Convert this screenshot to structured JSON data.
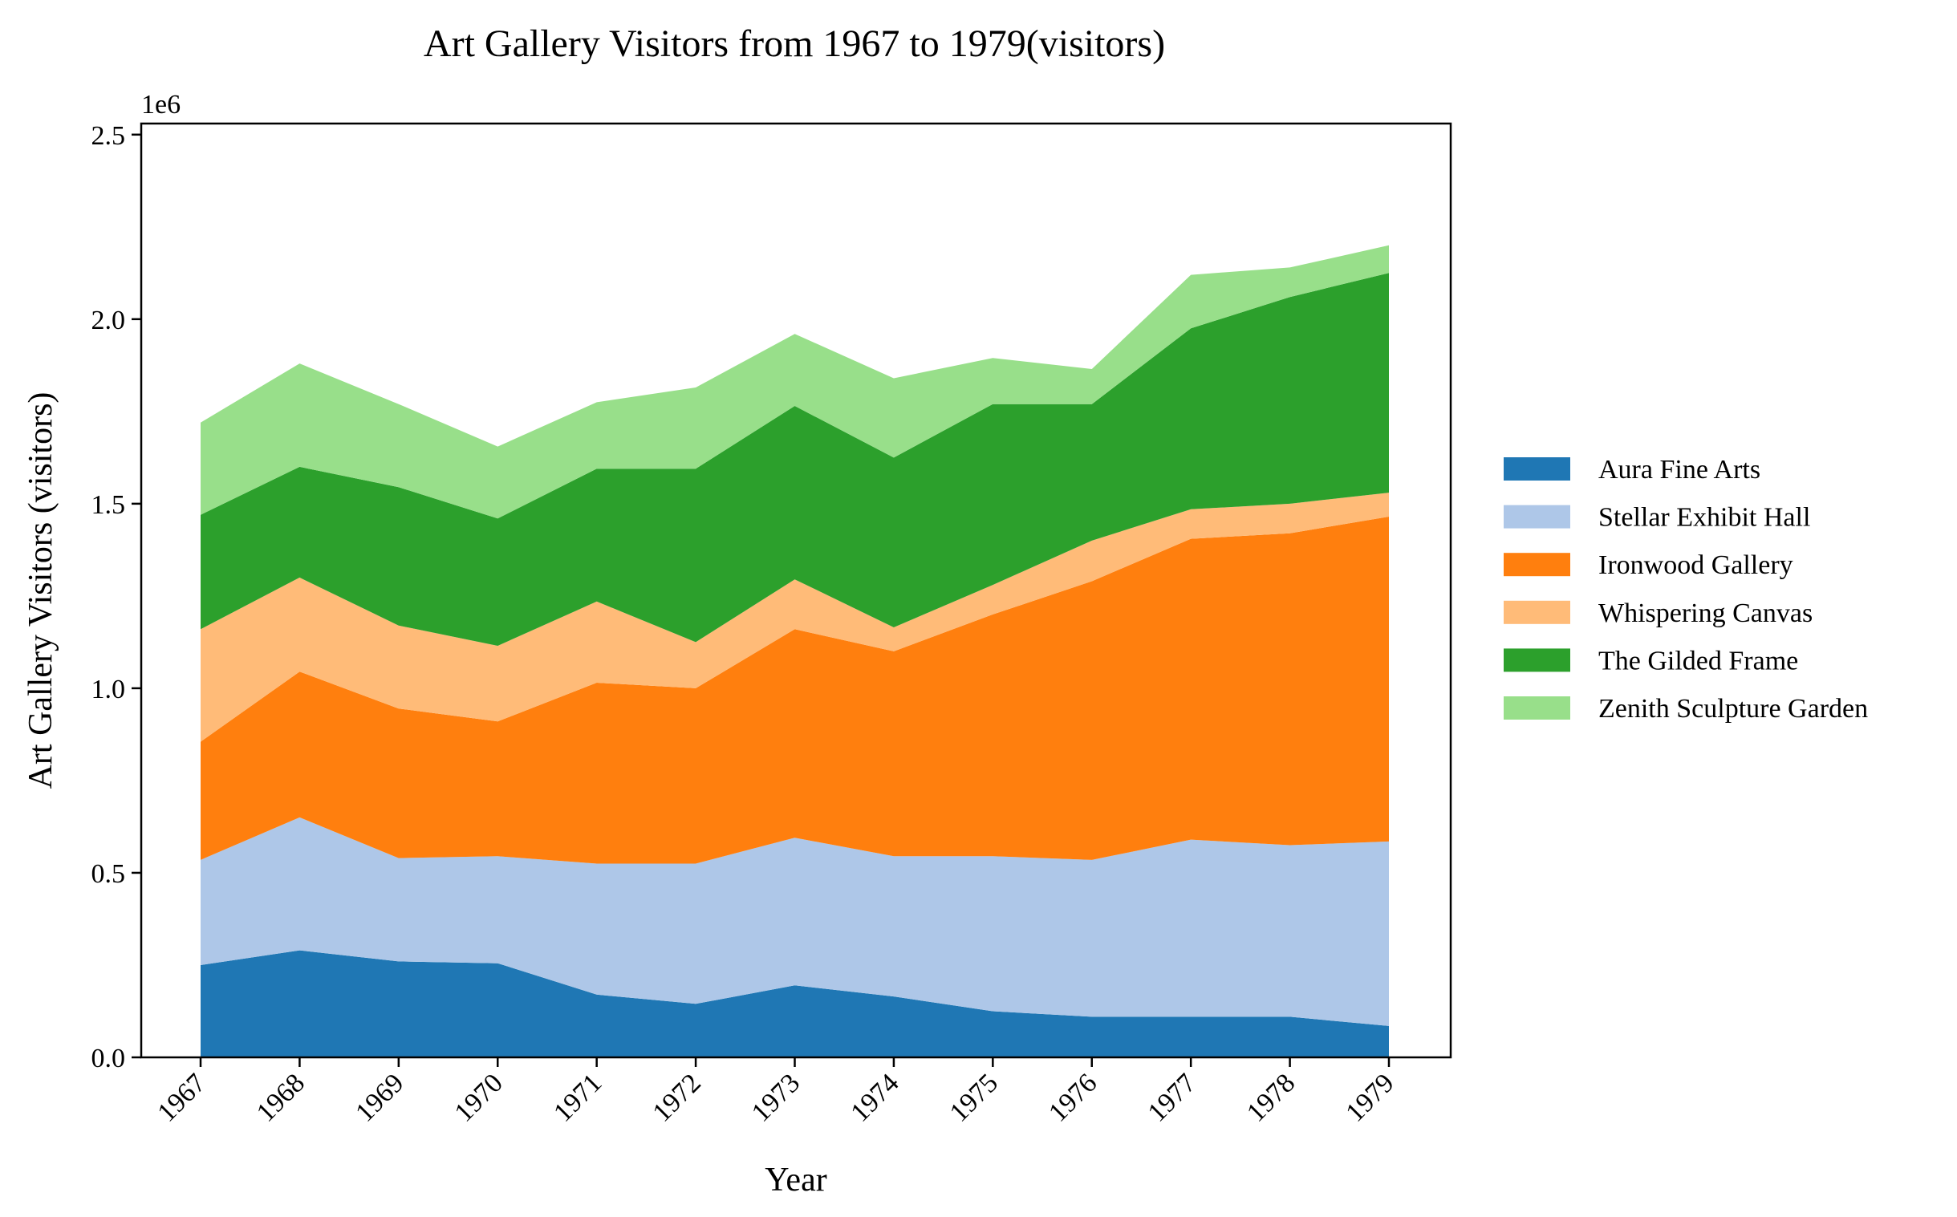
{
  "chart_data": {
    "type": "area",
    "stacked": true,
    "title": "Art Gallery Visitors from 1967 to 1979(visitors)",
    "xlabel": "Year",
    "ylabel": "Art Gallery Visitors (visitors)",
    "y_offset_label": "1e6",
    "ylim": [
      0,
      2.53
    ],
    "y_ticks": [
      0.0,
      0.5,
      1.0,
      1.5,
      2.0,
      2.5
    ],
    "y_tick_labels": [
      "0.0",
      "0.5",
      "1.0",
      "1.5",
      "2.0",
      "2.5"
    ],
    "x": [
      "1967",
      "1968",
      "1969",
      "1970",
      "1971",
      "1972",
      "1973",
      "1974",
      "1975",
      "1976",
      "1977",
      "1978",
      "1979"
    ],
    "legend_position": "right",
    "grid": false,
    "series": [
      {
        "name": "Aura Fine Arts",
        "color": "#1f77b4",
        "values": [
          0.25,
          0.29,
          0.26,
          0.255,
          0.17,
          0.145,
          0.195,
          0.165,
          0.125,
          0.11,
          0.11,
          0.11,
          0.085
        ]
      },
      {
        "name": "Stellar Exhibit Hall",
        "color": "#aec7e8",
        "values": [
          0.285,
          0.36,
          0.28,
          0.29,
          0.355,
          0.38,
          0.4,
          0.38,
          0.42,
          0.425,
          0.48,
          0.465,
          0.5
        ]
      },
      {
        "name": "Ironwood Gallery",
        "color": "#ff7f0e",
        "values": [
          0.32,
          0.395,
          0.405,
          0.365,
          0.49,
          0.475,
          0.565,
          0.555,
          0.655,
          0.755,
          0.815,
          0.845,
          0.88
        ]
      },
      {
        "name": "Whispering Canvas",
        "color": "#ffbb78",
        "values": [
          0.305,
          0.255,
          0.225,
          0.205,
          0.22,
          0.125,
          0.135,
          0.065,
          0.08,
          0.11,
          0.08,
          0.08,
          0.065
        ]
      },
      {
        "name": "The Gilded Frame",
        "color": "#2ca02c",
        "values": [
          0.31,
          0.3,
          0.375,
          0.345,
          0.36,
          0.47,
          0.47,
          0.46,
          0.49,
          0.37,
          0.49,
          0.56,
          0.595
        ]
      },
      {
        "name": "Zenith Sculpture Garden",
        "color": "#98df8a",
        "values": [
          0.25,
          0.28,
          0.225,
          0.195,
          0.18,
          0.22,
          0.195,
          0.215,
          0.125,
          0.095,
          0.145,
          0.08,
          0.075
        ]
      }
    ]
  }
}
